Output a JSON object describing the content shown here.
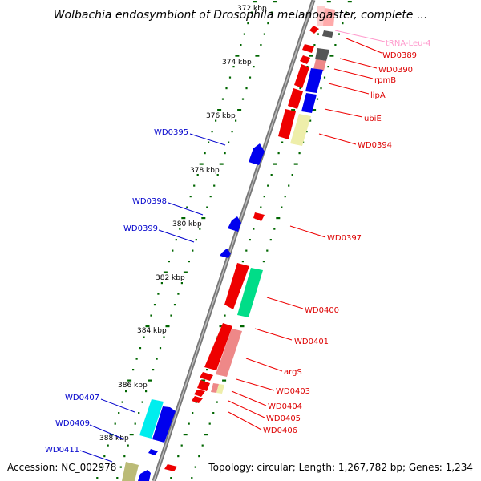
{
  "title": "Wolbachia endosymbiont of Drosophila melanogaster, complete ...",
  "footer": {
    "accession": "Accession: NC_002978",
    "summary": "Topology: circular; Length: 1,267,782 bp; Genes: 1,234"
  },
  "ticks": [
    "372 kbp",
    "374 kbp",
    "376 kbp",
    "378 kbp",
    "380 kbp",
    "382 kbp",
    "384 kbp",
    "386 kbp",
    "388 kbp"
  ],
  "right_labels": [
    {
      "text": "tRNA-Leu-4",
      "color": "#ff99cc"
    },
    {
      "text": "WD0389",
      "color": "#dd0000"
    },
    {
      "text": "WD0390",
      "color": "#dd0000"
    },
    {
      "text": "rpmB",
      "color": "#dd0000"
    },
    {
      "text": "lipA",
      "color": "#dd0000"
    },
    {
      "text": "ubiE",
      "color": "#dd0000"
    },
    {
      "text": "WD0394",
      "color": "#dd0000"
    },
    {
      "text": "WD0397",
      "color": "#dd0000"
    },
    {
      "text": "WD0400",
      "color": "#dd0000"
    },
    {
      "text": "WD0401",
      "color": "#dd0000"
    },
    {
      "text": "argS",
      "color": "#dd0000"
    },
    {
      "text": "WD0403",
      "color": "#dd0000"
    },
    {
      "text": "WD0404",
      "color": "#dd0000"
    },
    {
      "text": "WD0405",
      "color": "#dd0000"
    },
    {
      "text": "WD0406",
      "color": "#dd0000"
    }
  ],
  "left_labels": [
    {
      "text": "WD0395",
      "color": "#0000cc"
    },
    {
      "text": "WD0398",
      "color": "#0000cc"
    },
    {
      "text": "WD0399",
      "color": "#0000cc"
    },
    {
      "text": "WD0407",
      "color": "#0000cc"
    },
    {
      "text": "WD0409",
      "color": "#0000cc"
    },
    {
      "text": "WD0411",
      "color": "#0000cc"
    }
  ],
  "colors": {
    "red": "#ee0000",
    "blue": "#0000ee",
    "pink": "#ee8888",
    "teal": "#00dd88",
    "cyan": "#00eeee",
    "yellow": "#eeeeaa",
    "olive": "#bbbb77",
    "gray": "#666666",
    "tick_green": "#006600",
    "backbone": "#888888"
  }
}
